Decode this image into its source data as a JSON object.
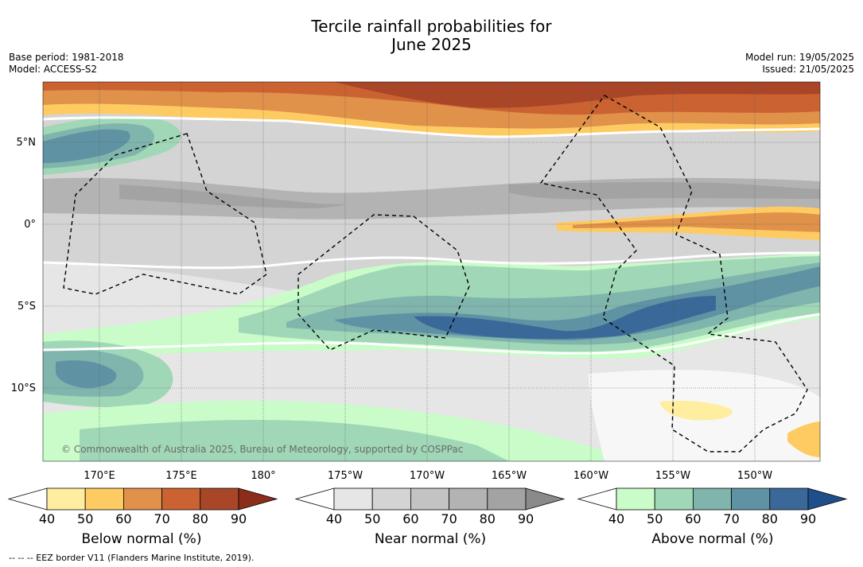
{
  "title_line1": "Tercile rainfall probabilities for",
  "title_line2": "June 2025",
  "base_period": "Base period: 1981-2018",
  "model": "Model: ACCESS-S2",
  "model_run": "Model run: 19/05/2025",
  "issued": "Issued: 21/05/2025",
  "copyright": "© Commonwealth of Australia 2025, Bureau of Meteorology, supported by COSPPac",
  "footnote": "--  --  -- EEZ border V11 (Flanders Marine Institute, 2019).",
  "lat_labels": [
    "5°N",
    "0°",
    "5°S",
    "10°S"
  ],
  "lon_labels": [
    "170°E",
    "175°E",
    "180°",
    "175°W",
    "170°W",
    "165°W",
    "160°W",
    "155°W",
    "150°W"
  ],
  "colorbars": [
    {
      "name": "Below normal (%)",
      "ticks": [
        "40",
        "50",
        "60",
        "70",
        "80",
        "90"
      ],
      "colors": [
        "#ffffff",
        "#ffeda0",
        "#fecb63",
        "#e0914a",
        "#cb6232",
        "#a94628",
        "#8c2d1c"
      ]
    },
    {
      "name": "Near normal (%)",
      "ticks": [
        "40",
        "50",
        "60",
        "70",
        "80",
        "90"
      ],
      "colors": [
        "#ffffff",
        "#e6e6e6",
        "#d4d4d4",
        "#c3c3c3",
        "#b3b3b3",
        "#a3a3a3",
        "#8a8a8a"
      ]
    },
    {
      "name": "Above normal (%)",
      "ticks": [
        "40",
        "50",
        "60",
        "70",
        "80",
        "90"
      ],
      "colors": [
        "#ffffff",
        "#c9fcc9",
        "#a0d7b7",
        "#80b5ad",
        "#5f93a4",
        "#3a6898",
        "#1f4f8a"
      ]
    }
  ]
}
